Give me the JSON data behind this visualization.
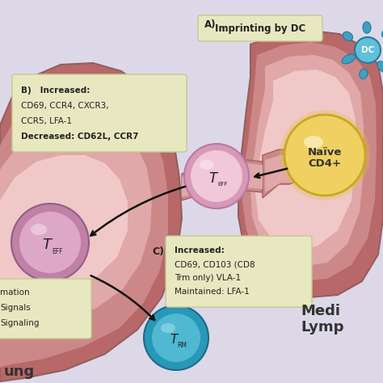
{
  "bg_color": "#ddd8e8",
  "box_bg": "#e8e8c0",
  "box_edge": "#c8c890",
  "arrow_color": "#111111",
  "tissue_dark": "#b86868",
  "tissue_mid": "#cc8888",
  "tissue_light": "#e0a8a8",
  "tissue_vlight": "#f0c8c8",
  "cell_teff_outer": "#d898b8",
  "cell_teff_inner": "#f0c8d8",
  "cell_teff2_outer": "#c080a8",
  "cell_teff2_inner": "#dda8c8",
  "cell_trm_outer": "#2898b8",
  "cell_trm_inner": "#50b8d0",
  "cell_trm_light": "#90d8e8",
  "cell_naive_outer": "#c8a820",
  "cell_naive_inner": "#f0d060",
  "dc_teal_dark": "#2878a0",
  "dc_teal_mid": "#40a0c0",
  "dc_teal_light": "#60c0d8",
  "label_A": "A)",
  "label_B": "B)",
  "label_C": "C)",
  "box_A_text": "Imprinting by DC",
  "box_B_line0": "B)   Increased:",
  "box_B_line1": "CD69, CCR4, CXCR3,",
  "box_B_line2": "CCR5, LFA-1",
  "box_B_line3": "Decreased: CD62L, CCR7",
  "box_C_line0": "Increased:",
  "box_C_line1": "CD69, CD103 (CD8",
  "box_C_line2": "Trm only) VLA-1",
  "box_C_line3": "Maintained: LFA-1",
  "naive_line1": "Naïve",
  "naive_line2": "CD4+",
  "dc_label": "DC",
  "medi_text1": "Medi",
  "medi_text2": "Lymp",
  "left_box_line0": "mation",
  "left_box_line1": "Signals",
  "left_box_line2": "Signaling",
  "lung_text": "ung"
}
